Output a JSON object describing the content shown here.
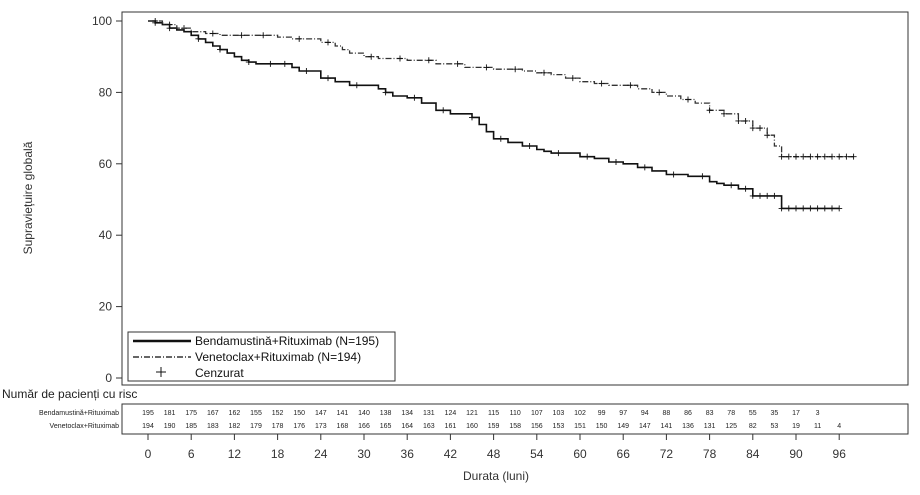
{
  "chart_data": {
    "type": "line",
    "title": "",
    "xlabel": "Durata (luni)",
    "ylabel": "Supraviețuire globală",
    "xlim": [
      0,
      102
    ],
    "ylim": [
      0,
      100
    ],
    "xticks": [
      0,
      6,
      12,
      18,
      24,
      30,
      36,
      42,
      48,
      54,
      60,
      66,
      72,
      78,
      84,
      90,
      96
    ],
    "yticks": [
      0,
      20,
      40,
      60,
      80,
      100
    ],
    "grid": false,
    "legend_position": "bottom-left",
    "legend": [
      {
        "label": "Bendamustină+Rituximab (N=195)",
        "style": "solid",
        "color": "#111111"
      },
      {
        "label": "Venetoclax+Rituximab (N=194)",
        "style": "dash-dot",
        "color": "#333333"
      },
      {
        "label": "Cenzurat",
        "style": "plus-marker",
        "color": "#111111"
      }
    ],
    "series": [
      {
        "name": "Bendamustină+Rituximab (N=195)",
        "color": "#111111",
        "dash": "",
        "x": [
          0,
          1,
          2,
          3,
          4,
          5,
          6,
          7,
          8,
          9,
          10,
          11,
          12,
          13,
          14,
          15,
          18,
          20,
          21,
          22,
          24,
          26,
          27,
          28,
          30,
          32,
          33,
          34,
          36,
          38,
          40,
          42,
          43,
          45,
          46,
          47,
          48,
          50,
          52,
          54,
          55,
          56,
          58,
          60,
          62,
          64,
          66,
          68,
          70,
          72,
          74,
          75,
          76,
          78,
          79,
          80,
          82,
          84,
          86,
          87,
          88,
          96
        ],
        "y": [
          100,
          99.5,
          99,
          98,
          97.5,
          97,
          96,
          95,
          94,
          93,
          92,
          91,
          90,
          89,
          88.5,
          88,
          88,
          87,
          86,
          86,
          84,
          83,
          83,
          82,
          82,
          81,
          80,
          79,
          78.5,
          77,
          75,
          74,
          74,
          73,
          71,
          69,
          67,
          66,
          65,
          64,
          63.5,
          63,
          63,
          62,
          61.5,
          60.5,
          60,
          59,
          58,
          57,
          57,
          56.5,
          56.5,
          55,
          54.5,
          54,
          53,
          51,
          51,
          51,
          47.5,
          47.5
        ]
      },
      {
        "name": "Venetoclax+Rituximab (N=194)",
        "color": "#333333",
        "dash": "6,2,1,2",
        "x": [
          0,
          2,
          4,
          6,
          8,
          10,
          12,
          14,
          18,
          20,
          24,
          26,
          27,
          28,
          30,
          32,
          36,
          40,
          44,
          48,
          52,
          54,
          56,
          58,
          60,
          62,
          64,
          66,
          68,
          70,
          72,
          74,
          76,
          78,
          80,
          82,
          84,
          86,
          87,
          88,
          98
        ],
        "y": [
          100,
          99,
          98,
          97,
          96.5,
          96,
          96,
          96,
          95.5,
          95,
          94,
          93,
          92,
          91,
          90,
          89.5,
          89,
          88,
          87,
          86.5,
          86,
          85.5,
          85,
          84,
          83,
          82.5,
          82,
          82,
          81,
          80,
          79,
          78,
          77,
          75,
          74,
          72,
          70,
          68,
          65,
          62,
          62
        ]
      }
    ],
    "censor_marks": [
      {
        "series": "Bendamustină+Rituximab (N=195)",
        "x": [
          1,
          3,
          7,
          10,
          14,
          17,
          19,
          22,
          25,
          29,
          33,
          37,
          41,
          45,
          49,
          53,
          57,
          61,
          65,
          69,
          73,
          77,
          81,
          83,
          84,
          85,
          86,
          87,
          88,
          89,
          90,
          91,
          92,
          93,
          94,
          95,
          96
        ]
      },
      {
        "series": "Venetoclax+Rituximab (N=194)",
        "x": [
          1,
          3,
          5,
          9,
          13,
          16,
          21,
          25,
          31,
          35,
          39,
          43,
          47,
          51,
          55,
          59,
          63,
          67,
          71,
          75,
          78,
          80,
          82,
          83,
          84,
          85,
          86,
          88,
          89,
          90,
          91,
          92,
          93,
          94,
          95,
          96,
          97,
          98
        ]
      }
    ],
    "risk_table": {
      "title": "Număr de pacienți cu risc",
      "times": [
        0,
        3,
        6,
        9,
        12,
        15,
        18,
        21,
        24,
        27,
        30,
        33,
        36,
        39,
        42,
        45,
        48,
        51,
        54,
        57,
        60,
        63,
        66,
        69,
        72,
        75,
        78,
        81,
        84,
        87,
        90,
        93,
        96
      ],
      "rows": [
        {
          "label": "Bendamustină+Rituximab",
          "values": [
            "195",
            "181",
            "175",
            "167",
            "162",
            "155",
            "152",
            "150",
            "147",
            "141",
            "140",
            "138",
            "134",
            "131",
            "124",
            "121",
            "115",
            "110",
            "107",
            "103",
            "102",
            "99",
            "97",
            "94",
            "88",
            "86",
            "83",
            "78",
            "55",
            "35",
            "17",
            "3",
            ""
          ]
        },
        {
          "label": "Venetoclax+Rituximab",
          "values": [
            "194",
            "190",
            "185",
            "183",
            "182",
            "179",
            "178",
            "176",
            "173",
            "168",
            "166",
            "165",
            "164",
            "163",
            "161",
            "160",
            "159",
            "158",
            "156",
            "153",
            "151",
            "150",
            "149",
            "147",
            "141",
            "136",
            "131",
            "125",
            "82",
            "53",
            "19",
            "11",
            "4"
          ]
        }
      ]
    }
  }
}
